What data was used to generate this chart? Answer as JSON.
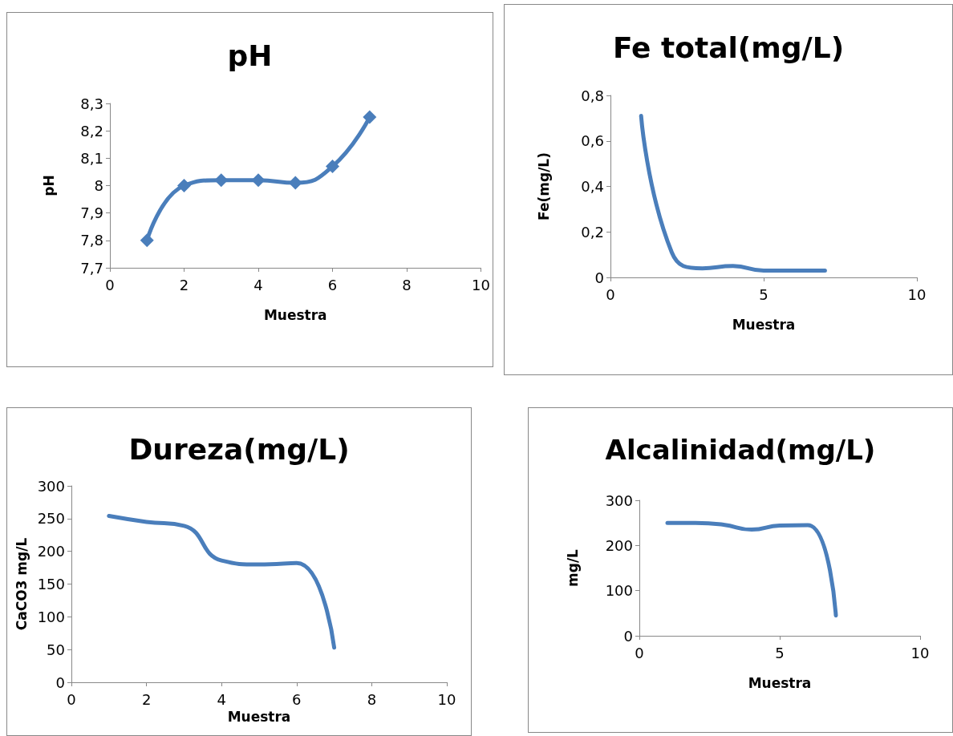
{
  "chart_data": [
    {
      "type": "line",
      "title": "pH",
      "xlabel": "Muestra",
      "ylabel": "pH",
      "x": [
        1,
        2,
        3,
        4,
        5,
        6,
        7
      ],
      "series": [
        {
          "color": "#4a7ebb",
          "values": [
            7.8,
            8.0,
            8.02,
            8.02,
            8.01,
            8.07,
            8.25
          ]
        }
      ],
      "xlim": [
        0,
        10
      ],
      "xticks": [
        0,
        2,
        4,
        6,
        8,
        10
      ],
      "ylim": [
        7.7,
        8.3
      ],
      "yticks": [
        {
          "value": 7.7,
          "label": "7,7"
        },
        {
          "value": 7.8,
          "label": "7,8"
        },
        {
          "value": 7.9,
          "label": "7,9"
        },
        {
          "value": 8,
          "label": "8"
        },
        {
          "value": 8.1,
          "label": "8,1"
        },
        {
          "value": 8.2,
          "label": "8,2"
        },
        {
          "value": 8.3,
          "label": "8,3"
        }
      ],
      "grid": false,
      "marker": "diamond",
      "line_style": "solid"
    },
    {
      "type": "line",
      "title": "Fe total(mg/L)",
      "xlabel": "Muestra",
      "ylabel": "Fe(mg/L)",
      "x": [
        1,
        2,
        3,
        4,
        5,
        6,
        7
      ],
      "series": [
        {
          "color": "#4a7ebb",
          "values": [
            0.71,
            0.11,
            0.04,
            0.05,
            0.03,
            0.03,
            0.03
          ]
        }
      ],
      "xlim": [
        0,
        10
      ],
      "xticks": [
        0,
        5,
        10
      ],
      "ylim": [
        0,
        0.8
      ],
      "yticks": [
        0,
        {
          "value": 0.2,
          "label": "0,2"
        },
        {
          "value": 0.4,
          "label": "0,4"
        },
        {
          "value": 0.6,
          "label": "0,6"
        },
        {
          "value": 0.8,
          "label": "0,8"
        }
      ],
      "grid": false,
      "marker": "none",
      "line_style": "solid"
    },
    {
      "type": "line",
      "title": "Dureza(mg/L)",
      "xlabel": "Muestra",
      "ylabel": "CaCO3 mg/L",
      "x": [
        1,
        2,
        3,
        4,
        5,
        6,
        7
      ],
      "series": [
        {
          "color": "#4a7ebb",
          "values": [
            254,
            245,
            239,
            186,
            180,
            182,
            53
          ]
        }
      ],
      "xlim": [
        0,
        10
      ],
      "xticks": [
        0,
        2,
        4,
        6,
        8,
        10
      ],
      "ylim": [
        0,
        300
      ],
      "yticks": [
        0,
        50,
        100,
        150,
        200,
        250,
        300
      ],
      "grid": false,
      "marker": "none",
      "line_style": "solid"
    },
    {
      "type": "line",
      "title": "Alcalinidad(mg/L)",
      "xlabel": "Muestra",
      "ylabel": "mg/L",
      "x": [
        1,
        2,
        3,
        4,
        5,
        6,
        7
      ],
      "series": [
        {
          "color": "#4a7ebb",
          "values": [
            250,
            250,
            246,
            235,
            244,
            245,
            45
          ]
        }
      ],
      "xlim": [
        0,
        10
      ],
      "xticks": [
        0,
        5,
        10
      ],
      "ylim": [
        0,
        300
      ],
      "yticks": [
        0,
        100,
        200,
        300
      ],
      "grid": false,
      "marker": "none",
      "line_style": "solid"
    }
  ]
}
